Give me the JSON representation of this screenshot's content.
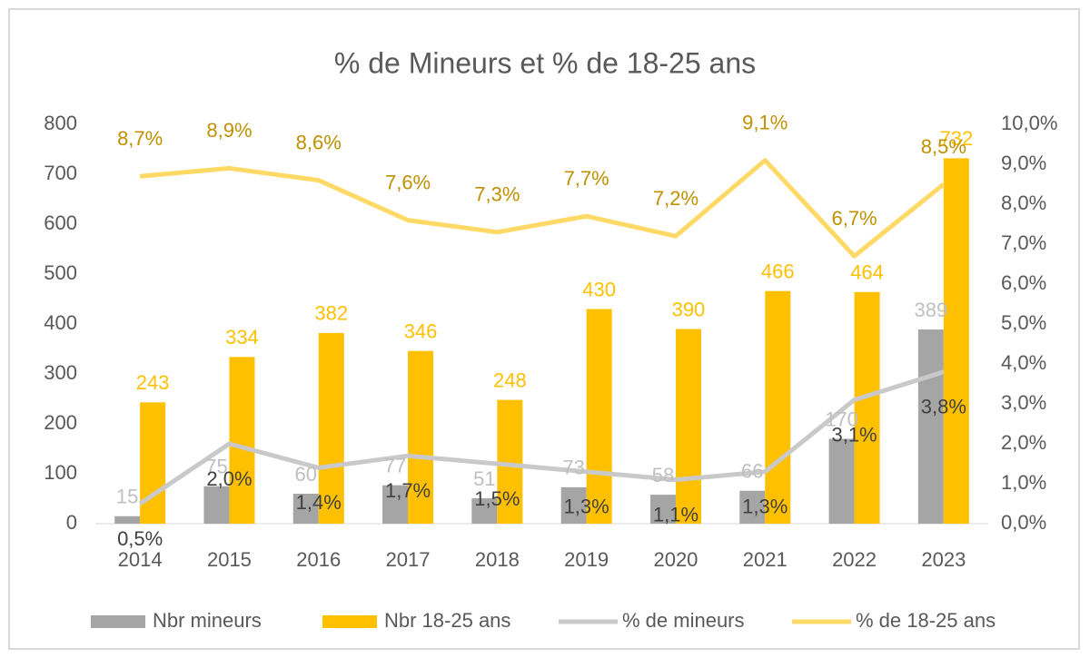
{
  "chart_data": {
    "type": "bar_line",
    "title": "% de Mineurs et % de 18-25 ans",
    "categories": [
      "2014",
      "2015",
      "2016",
      "2017",
      "2018",
      "2019",
      "2020",
      "2021",
      "2022",
      "2023"
    ],
    "series": [
      {
        "name": "Nbr mineurs",
        "type": "bar",
        "color": "#a5a5a5",
        "label_color": "#bfbfbf",
        "values": [
          15,
          75,
          60,
          77,
          51,
          73,
          58,
          66,
          170,
          389
        ]
      },
      {
        "name": "Nbr 18-25 ans",
        "type": "bar",
        "color": "#ffc000",
        "label_color": "#ffc000",
        "values": [
          243,
          334,
          382,
          346,
          248,
          430,
          390,
          466,
          464,
          732
        ]
      },
      {
        "name": "% de mineurs",
        "type": "line",
        "axis": "y2",
        "color": "#c9c9c9",
        "label_color": "#404040",
        "values": [
          0.5,
          2.0,
          1.4,
          1.7,
          1.5,
          1.3,
          1.1,
          1.3,
          3.1,
          3.8
        ],
        "value_labels": [
          "0,5%",
          "2,0%",
          "1,4%",
          "1,7%",
          "1,5%",
          "1,3%",
          "1,1%",
          "1,3%",
          "3,1%",
          "3,8%"
        ]
      },
      {
        "name": "% de 18-25 ans",
        "type": "line",
        "axis": "y2",
        "color": "#ffd966",
        "label_color": "#bf9000",
        "values": [
          8.7,
          8.9,
          8.6,
          7.6,
          7.3,
          7.7,
          7.2,
          9.1,
          6.7,
          8.5
        ],
        "value_labels": [
          "8,7%",
          "8,9%",
          "8,6%",
          "7,6%",
          "7,3%",
          "7,7%",
          "7,2%",
          "9,1%",
          "6,7%",
          "8,5%"
        ]
      }
    ],
    "ylim": [
      0,
      800
    ],
    "yticks": [
      0,
      100,
      200,
      300,
      400,
      500,
      600,
      700,
      800
    ],
    "y2lim": [
      0,
      10
    ],
    "y2ticks": [
      {
        "value": 0,
        "label": "0,0%"
      },
      {
        "value": 1,
        "label": "1,0%"
      },
      {
        "value": 2,
        "label": "2,0%"
      },
      {
        "value": 3,
        "label": "3,0%"
      },
      {
        "value": 4,
        "label": "4,0%"
      },
      {
        "value": 5,
        "label": "5,0%"
      },
      {
        "value": 6,
        "label": "6,0%"
      },
      {
        "value": 7,
        "label": "7,0%"
      },
      {
        "value": 8,
        "label": "8,0%"
      },
      {
        "value": 9,
        "label": "9,0%"
      },
      {
        "value": 10,
        "label": "10,0%"
      }
    ],
    "grid": false,
    "legend": "bottom"
  }
}
